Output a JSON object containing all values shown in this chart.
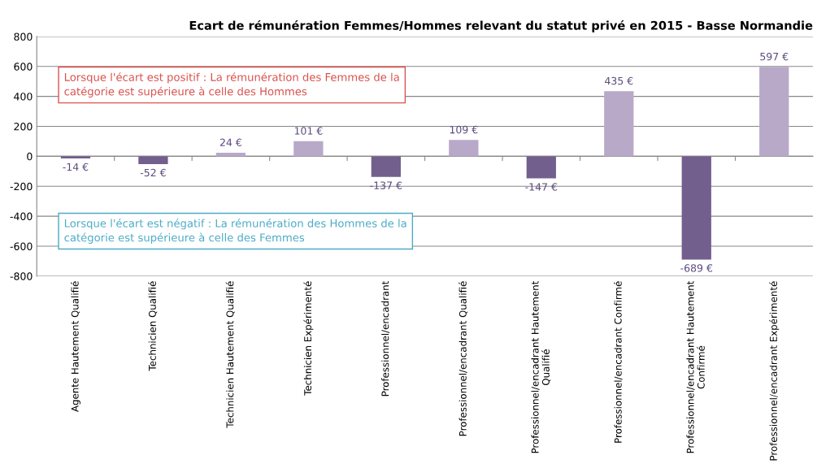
{
  "chart_data": {
    "type": "bar",
    "title": "Ecart de rémunération Femmes/Hommes relevant du statut privé en 2015 - Basse Normandie",
    "categories": [
      "Agente Hautement Qualifié",
      "Technicien Qualifié",
      "Technicien Hautement Qualifié",
      "Technicien Expérimenté",
      "Professionnel/encadrant",
      "Professionnel/encadrant Qualifié",
      "Professionnel/encadrant Hautement Qualifié",
      "Professionnel/encadrant Confirmé",
      "Professionnel/encadrant Hautement Confirmé",
      "Professionnel/encadrant Expérimenté"
    ],
    "values": [
      -14,
      -52,
      24,
      101,
      -137,
      109,
      -147,
      435,
      -689,
      597
    ],
    "value_labels": [
      "-14 €",
      "-52 €",
      "24 €",
      "101 €",
      "-137 €",
      "109 €",
      "-147 €",
      "435 €",
      "-689 €",
      "597 €"
    ],
    "colors": [
      "#735f8e",
      "#735f8e",
      "#b8a9c9",
      "#b8a9c9",
      "#735f8e",
      "#b8a9c9",
      "#735f8e",
      "#b8a9c9",
      "#735f8e",
      "#b8a9c9"
    ],
    "ylim": [
      -800,
      800
    ],
    "yticks": [
      -800,
      -600,
      -400,
      -200,
      0,
      200,
      400,
      600,
      800
    ],
    "grid": "y",
    "annotations": [
      "Lorsque l'écart est positif : La rémunération des Femmes de la\ncatégorie est supérieure à celle des Hommes",
      "Lorsque l'écart est négatif : La rémunération des Hommes de la\ncatégorie est supérieure à celle des Femmes"
    ]
  }
}
